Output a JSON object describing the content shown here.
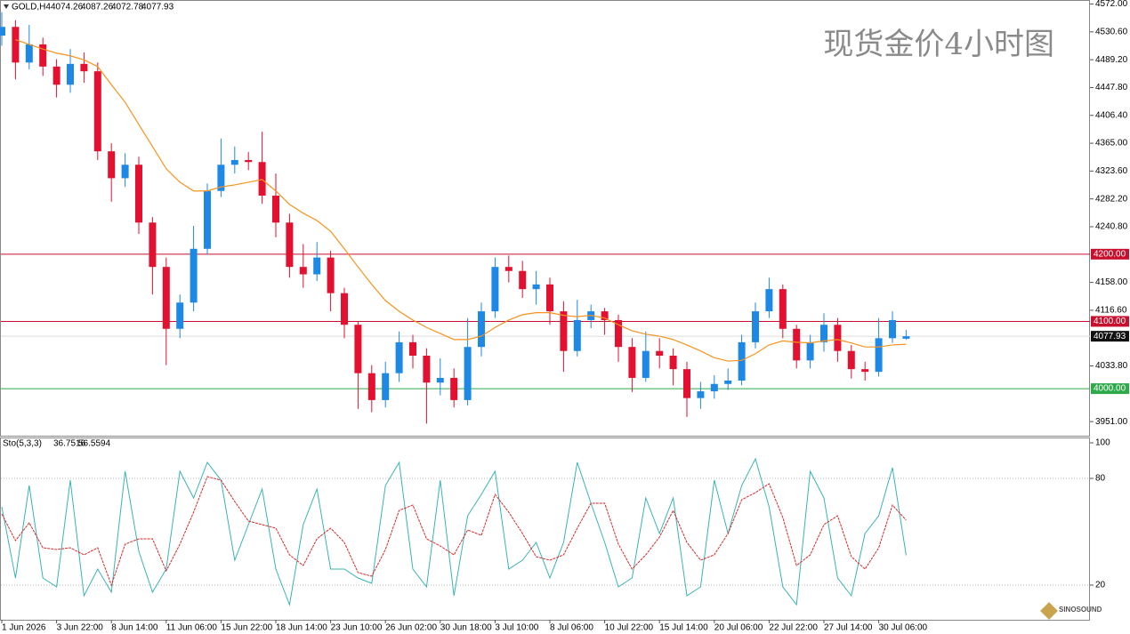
{
  "chart_data": {
    "type": "candlestick",
    "symbol": "GOLD,H4",
    "title": "现货金价4小时图",
    "logo": "SINOSOUND",
    "up_color": "#1e88e5",
    "down_color": "#e3102f",
    "categories": [
      "1 Jun 2026",
      null,
      null,
      null,
      "3 Jun 22:00",
      null,
      null,
      null,
      "8 Jun 14:00",
      null,
      null,
      null,
      "11 Jun 06:00",
      null,
      null,
      null,
      "15 Jun 22:00",
      null,
      null,
      null,
      "18 Jun 14:00",
      null,
      null,
      null,
      "23 Jun 10:00",
      null,
      null,
      null,
      "26 Jun 02:00",
      null,
      null,
      null,
      "30 Jun 18:00",
      null,
      null,
      null,
      "3 Jul 10:00",
      null,
      null,
      null,
      "8 Jul 06:00",
      null,
      null,
      null,
      "10 Jul 22:00",
      null,
      null,
      null,
      "15 Jul 14:00",
      null,
      null,
      null,
      "20 Jul 06:00",
      null,
      null,
      null,
      "22 Jul 22:00",
      null,
      null,
      null,
      "27 Jul 14:00",
      null,
      null,
      null,
      "30 Jul 06:00",
      null,
      null
    ],
    "open": [
      4525,
      4538,
      4485,
      4512,
      4479,
      4452,
      4483,
      4472,
      4353,
      4313,
      4333,
      4247,
      4181,
      4089,
      4128,
      4208,
      4294,
      4333,
      4340,
      4337,
      4287,
      4247,
      4181,
      4170,
      4195,
      4142,
      4095,
      4023,
      3983,
      4023,
      4069,
      4049,
      4009,
      4016,
      3983,
      4062,
      4115,
      4181,
      4175,
      4148,
      4155,
      4115,
      4056,
      4102,
      4115,
      4102,
      4062,
      4016,
      4056,
      4049,
      4029,
      3986,
      3996,
      4007,
      4012,
      4069,
      4115,
      4148,
      4089,
      4042,
      4069,
      4095,
      4056,
      4029,
      4025,
      4075,
      4074.26
    ],
    "high": [
      4560,
      4548,
      4541,
      4522,
      4490,
      4505,
      4500,
      4485,
      4365,
      4350,
      4345,
      4255,
      4195,
      4140,
      4242,
      4305,
      4372,
      4360,
      4352,
      4382,
      4320,
      4260,
      4215,
      4218,
      4205,
      4150,
      4100,
      4035,
      4040,
      4085,
      4080,
      4060,
      4045,
      4030,
      4105,
      4128,
      4195,
      4198,
      4190,
      4175,
      4165,
      4130,
      4132,
      4125,
      4120,
      4110,
      4075,
      4085,
      4075,
      4060,
      4040,
      4010,
      4020,
      4030,
      4080,
      4128,
      4165,
      4155,
      4095,
      4080,
      4112,
      4105,
      4065,
      4040,
      4105,
      4115,
      4087.26
    ],
    "low": [
      4510,
      4460,
      4475,
      4465,
      4433,
      4440,
      4455,
      4340,
      4278,
      4300,
      4230,
      4140,
      4035,
      4075,
      4115,
      4200,
      4285,
      4320,
      4325,
      4275,
      4225,
      4165,
      4150,
      4160,
      4115,
      4075,
      3970,
      3965,
      3972,
      4010,
      4030,
      3948,
      3990,
      3972,
      3975,
      4048,
      4105,
      4158,
      4135,
      4125,
      4095,
      4025,
      4048,
      4090,
      4080,
      4040,
      3995,
      4010,
      4030,
      4005,
      3958,
      3970,
      3985,
      3998,
      4005,
      4060,
      4105,
      4075,
      4030,
      4030,
      4055,
      4040,
      4015,
      4012,
      4018,
      4068,
      4072.78
    ],
    "close": [
      4538,
      4485,
      4512,
      4479,
      4452,
      4483,
      4472,
      4353,
      4313,
      4333,
      4247,
      4181,
      4089,
      4128,
      4208,
      4294,
      4333,
      4340,
      4337,
      4287,
      4247,
      4181,
      4170,
      4195,
      4142,
      4095,
      4023,
      3983,
      4023,
      4069,
      4049,
      4009,
      4016,
      3983,
      4062,
      4115,
      4181,
      4175,
      4148,
      4155,
      4115,
      4056,
      4102,
      4115,
      4102,
      4062,
      4016,
      4056,
      4049,
      4029,
      3986,
      3996,
      4007,
      4012,
      4069,
      4115,
      4148,
      4089,
      4042,
      4069,
      4095,
      4056,
      4029,
      4025,
      4075,
      4102,
      4077.93
    ],
    "ma": {
      "color": "#f7931e",
      "values": [
        null,
        4519,
        4512,
        4505,
        4499,
        4495,
        4489,
        4479,
        4452,
        4426,
        4393,
        4360,
        4327,
        4307,
        4294,
        4294,
        4300,
        4303,
        4307,
        4311,
        4294,
        4274,
        4261,
        4250,
        4234,
        4208,
        4181,
        4155,
        4131,
        4115,
        4102,
        4091,
        4082,
        4073,
        4073,
        4078,
        4091,
        4102,
        4110,
        4113,
        4113,
        4109,
        4107,
        4109,
        4105,
        4095,
        4086,
        4081,
        4078,
        4073,
        4065,
        4056,
        4046,
        4041,
        4042,
        4052,
        4065,
        4071,
        4069,
        4068,
        4071,
        4073,
        4068,
        4062,
        4062,
        4065,
        4066
      ]
    },
    "ylim": [
      3930,
      4578
    ],
    "yticks": [
      {
        "value": 4572,
        "label": "4572.00"
      },
      {
        "value": 4530.6,
        "label": "4530.60"
      },
      {
        "value": 4489.2,
        "label": "4489.20"
      },
      {
        "value": 4447.8,
        "label": "4447.80"
      },
      {
        "value": 4406.4,
        "label": "4406.40"
      },
      {
        "value": 4365,
        "label": "4365.00"
      },
      {
        "value": 4323.6,
        "label": "4323.60"
      },
      {
        "value": 4282.2,
        "label": "4282.20"
      },
      {
        "value": 4240.8,
        "label": "4240.80"
      },
      {
        "value": 4158,
        "label": "4158.00"
      },
      {
        "value": 4116.6,
        "label": "4116.60"
      },
      {
        "value": 4033.8,
        "label": "4033.80"
      },
      {
        "value": 3951,
        "label": "3951.00"
      }
    ],
    "levels": [
      {
        "value": 4200,
        "label": "4200.00",
        "color": "#c8102e"
      },
      {
        "value": 4100,
        "label": "4100.00",
        "color": "#c8102e"
      },
      {
        "value": 4000,
        "label": "4000.00",
        "color": "#2eaa4a"
      }
    ],
    "indicator": {
      "name": "Sto(5,3,3)",
      "ylim": [
        0,
        103
      ],
      "yticks": [
        100,
        80,
        20
      ],
      "series": [
        {
          "color": "#3bb3b3",
          "values": [
            64,
            24,
            76,
            24,
            19,
            79,
            14,
            29,
            16,
            84,
            39,
            16,
            29,
            84,
            69,
            89,
            79,
            34,
            54,
            74,
            29,
            9,
            54,
            74,
            29,
            29,
            24,
            21,
            76,
            89,
            29,
            19,
            79,
            14,
            59,
            71,
            84,
            29,
            34,
            44,
            24,
            44,
            89,
            66,
            44,
            19,
            24,
            69,
            49,
            69,
            14,
            19,
            79,
            49,
            76,
            91,
            64,
            19,
            9,
            84,
            69,
            24,
            14,
            49,
            59,
            86,
            36.7516
          ]
        },
        {
          "color": "#d62b2b",
          "values": [
            60,
            45,
            55,
            41,
            40,
            41,
            37,
            41,
            20,
            43,
            46,
            46,
            28,
            43,
            61,
            81,
            79,
            67,
            56,
            54,
            52,
            37,
            31,
            46,
            52,
            44,
            27,
            25,
            40,
            62,
            65,
            46,
            42,
            37,
            51,
            48,
            71,
            61,
            49,
            36,
            34,
            37,
            52,
            66,
            66,
            43,
            29,
            37,
            47,
            62,
            44,
            34,
            37,
            49,
            68,
            72,
            77,
            58,
            31,
            37,
            54,
            59,
            36,
            29,
            41,
            65,
            56.5594
          ]
        }
      ]
    }
  }
}
